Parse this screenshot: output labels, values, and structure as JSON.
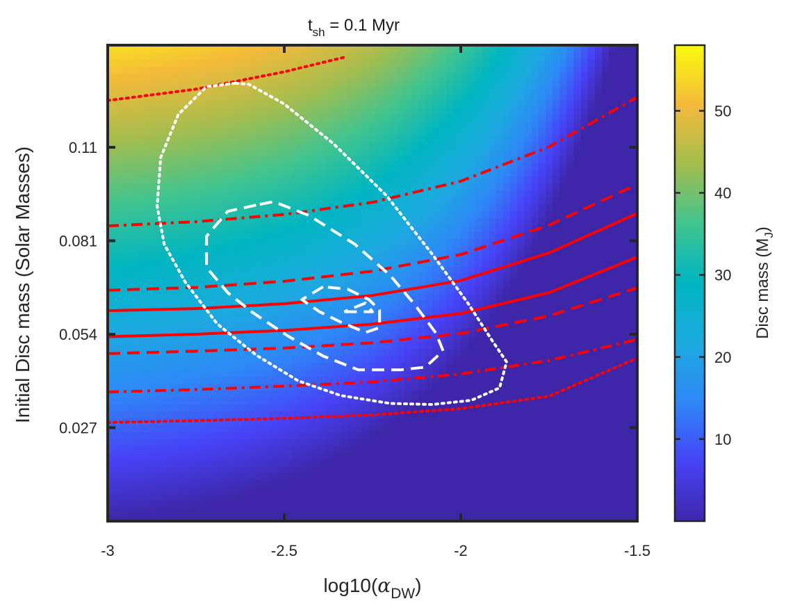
{
  "chart_data": {
    "type": "heatmap",
    "title": {
      "main": "t",
      "sub": "sh",
      "rest": " = 0.1 Myr"
    },
    "xlabel": {
      "main": "log10(",
      "greek": "α",
      "sub": "DW",
      "close": ")"
    },
    "ylabel": "Initial Disc mass (Solar Masses)",
    "colorbar_label": {
      "main": "Disc mass (M",
      "sub": "J",
      "close": ")"
    },
    "colormap": "parula",
    "colors": {
      "contour_red": "#ff0000",
      "contour_white": "#ffffff",
      "frame": "#262626"
    },
    "xlim": [
      -3,
      -1.5
    ],
    "ylim": [
      0.0,
      0.1375
    ],
    "clim": [
      0,
      58
    ],
    "x_ticks": [
      {
        "value": -3,
        "label": "-3"
      },
      {
        "value": -2.5,
        "label": "-2.5"
      },
      {
        "value": -2,
        "label": "-2"
      },
      {
        "value": -1.5,
        "label": "-1.5"
      }
    ],
    "y_ticks": [
      {
        "value": 0.027,
        "label": "0.027"
      },
      {
        "value": 0.054,
        "label": "0.054"
      },
      {
        "value": 0.081,
        "label": "0.081"
      },
      {
        "value": 0.108,
        "label": "0.11"
      }
    ],
    "colorbar_ticks": [
      {
        "value": 10,
        "label": "10"
      },
      {
        "value": 20,
        "label": "20"
      },
      {
        "value": 30,
        "label": "30"
      },
      {
        "value": 40,
        "label": "40"
      },
      {
        "value": 50,
        "label": "50"
      }
    ],
    "red_contours": [
      {
        "style": "solid",
        "points": [
          [
            -3,
            0.0608
          ],
          [
            -2.75,
            0.0614
          ],
          [
            -2.5,
            0.0628
          ],
          [
            -2.25,
            0.0652
          ],
          [
            -2,
            0.0695
          ],
          [
            -1.75,
            0.0775
          ],
          [
            -1.5,
            0.0889
          ]
        ]
      },
      {
        "style": "solid",
        "points": [
          [
            -3,
            0.0533
          ],
          [
            -2.75,
            0.054
          ],
          [
            -2.5,
            0.0551
          ],
          [
            -2.25,
            0.0569
          ],
          [
            -2,
            0.06
          ],
          [
            -1.75,
            0.066
          ],
          [
            -1.5,
            0.0763
          ]
        ]
      },
      {
        "style": "dashed",
        "points": [
          [
            -3,
            0.0667
          ],
          [
            -2.75,
            0.0675
          ],
          [
            -2.5,
            0.0693
          ],
          [
            -2.25,
            0.0722
          ],
          [
            -2,
            0.077
          ],
          [
            -1.75,
            0.0855
          ],
          [
            -1.5,
            0.0973
          ]
        ]
      },
      {
        "style": "dashed",
        "points": [
          [
            -3,
            0.0484
          ],
          [
            -2.75,
            0.0491
          ],
          [
            -2.5,
            0.05
          ],
          [
            -2.25,
            0.0515
          ],
          [
            -2,
            0.0542
          ],
          [
            -1.75,
            0.0593
          ],
          [
            -1.5,
            0.0674
          ]
        ]
      },
      {
        "style": "dashdot",
        "points": [
          [
            -3,
            0.0853
          ],
          [
            -2.75,
            0.0865
          ],
          [
            -2.5,
            0.0886
          ],
          [
            -2.25,
            0.0921
          ],
          [
            -2,
            0.0982
          ],
          [
            -1.75,
            0.1081
          ],
          [
            -1.5,
            0.1225
          ]
        ]
      },
      {
        "style": "dashdot",
        "points": [
          [
            -3,
            0.0373
          ],
          [
            -2.75,
            0.038
          ],
          [
            -2.5,
            0.039
          ],
          [
            -2.25,
            0.0402
          ],
          [
            -2,
            0.0425
          ],
          [
            -1.75,
            0.0464
          ],
          [
            -1.5,
            0.0525
          ]
        ]
      },
      {
        "style": "dotted",
        "points": [
          [
            -3,
            0.1215
          ],
          [
            -2.75,
            0.1248
          ],
          [
            -2.5,
            0.1298
          ],
          [
            -2.33,
            0.134
          ]
        ]
      },
      {
        "style": "dotted",
        "points": [
          [
            -3,
            0.0285
          ],
          [
            -2.75,
            0.029
          ],
          [
            -2.5,
            0.0297
          ],
          [
            -2.25,
            0.0307
          ],
          [
            -2,
            0.0325
          ],
          [
            -1.75,
            0.0361
          ],
          [
            -1.5,
            0.0471
          ]
        ]
      }
    ],
    "white_contours": [
      {
        "style": "dotted",
        "points": [
          [
            -2.64,
            0.1265
          ],
          [
            -2.72,
            0.1255
          ],
          [
            -2.8,
            0.1175
          ],
          [
            -2.85,
            0.105
          ],
          [
            -2.86,
            0.091
          ],
          [
            -2.84,
            0.08
          ],
          [
            -2.78,
            0.069
          ],
          [
            -2.69,
            0.057
          ],
          [
            -2.58,
            0.048
          ],
          [
            -2.46,
            0.0405
          ],
          [
            -2.34,
            0.0363
          ],
          [
            -2.2,
            0.034
          ],
          [
            -2.08,
            0.0337
          ],
          [
            -1.97,
            0.0349
          ],
          [
            -1.89,
            0.0385
          ],
          [
            -1.87,
            0.046
          ],
          [
            -1.91,
            0.052
          ],
          [
            -1.98,
            0.063
          ],
          [
            -2.08,
            0.077
          ],
          [
            -2.21,
            0.094
          ],
          [
            -2.36,
            0.109
          ],
          [
            -2.5,
            0.1205
          ],
          [
            -2.6,
            0.1262
          ],
          [
            -2.64,
            0.1265
          ]
        ]
      },
      {
        "style": "dashed",
        "points": [
          [
            -2.58,
            0.0913
          ],
          [
            -2.66,
            0.0895
          ],
          [
            -2.72,
            0.0823
          ],
          [
            -2.72,
            0.0733
          ],
          [
            -2.66,
            0.066
          ],
          [
            -2.59,
            0.0603
          ],
          [
            -2.49,
            0.0535
          ],
          [
            -2.39,
            0.0477
          ],
          [
            -2.29,
            0.0437
          ],
          [
            -2.17,
            0.0437
          ],
          [
            -2.1,
            0.0445
          ],
          [
            -2.05,
            0.0492
          ],
          [
            -2.07,
            0.0543
          ],
          [
            -2.13,
            0.0625
          ],
          [
            -2.2,
            0.071
          ],
          [
            -2.3,
            0.08
          ],
          [
            -2.43,
            0.0883
          ],
          [
            -2.53,
            0.0923
          ],
          [
            -2.58,
            0.0913
          ]
        ]
      },
      {
        "style": "dashed",
        "points": [
          [
            -2.39,
            0.0677
          ],
          [
            -2.45,
            0.064
          ],
          [
            -2.4,
            0.0605
          ],
          [
            -2.34,
            0.0575
          ],
          [
            -2.27,
            0.0545
          ],
          [
            -2.23,
            0.0559
          ],
          [
            -2.23,
            0.061
          ],
          [
            -2.26,
            0.064
          ],
          [
            -2.32,
            0.067
          ],
          [
            -2.39,
            0.0677
          ]
        ]
      },
      {
        "style": "dashed",
        "points": [
          [
            -2.33,
            0.0605
          ],
          [
            -2.25,
            0.0605
          ],
          [
            -2.27,
            0.063
          ],
          [
            -2.33,
            0.0605
          ]
        ]
      }
    ]
  }
}
